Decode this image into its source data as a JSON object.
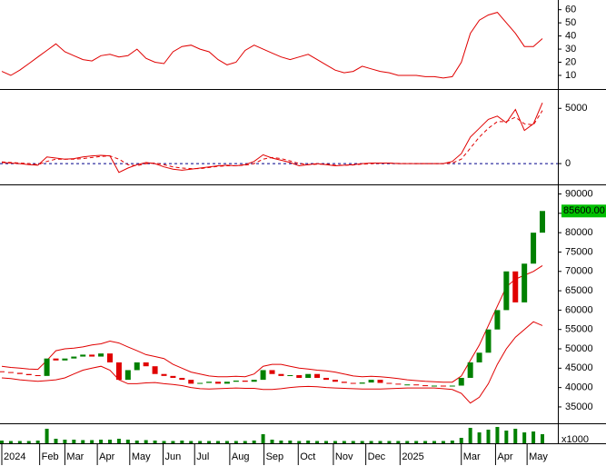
{
  "chart_data": [
    {
      "type": "line",
      "ylim": [
        1,
        66
      ],
      "yticks": [
        10,
        20,
        30,
        40,
        50,
        60
      ],
      "series": [
        {
          "color": "#e00000",
          "values": [
            13,
            10,
            14,
            19,
            24,
            29,
            34,
            28,
            25,
            22,
            21,
            25,
            26,
            24,
            25,
            30,
            23,
            20,
            19,
            28,
            32,
            33,
            30,
            28,
            22,
            18,
            20,
            29,
            33,
            30,
            27,
            24,
            22,
            24,
            26,
            22,
            18,
            14,
            12,
            13,
            17,
            15,
            13,
            12,
            10,
            10,
            10,
            9,
            9,
            8,
            9,
            20,
            42,
            52,
            56,
            58,
            50,
            42,
            32,
            32,
            38
          ]
        }
      ]
    },
    {
      "type": "line",
      "ylim": [
        -1800,
        6500
      ],
      "yticks": [
        0,
        5000
      ],
      "reference_line": 0,
      "series": [
        {
          "color": "#e00000",
          "dashed": false,
          "values": [
            100,
            50,
            0,
            -100,
            -150,
            600,
            500,
            400,
            450,
            600,
            700,
            750,
            700,
            -800,
            -400,
            -100,
            100,
            0,
            -300,
            -500,
            -600,
            -500,
            -400,
            -300,
            -200,
            -150,
            -200,
            -100,
            200,
            800,
            500,
            300,
            100,
            -200,
            -100,
            0,
            -100,
            -200,
            -150,
            -100,
            0,
            50,
            50,
            50,
            0,
            0,
            0,
            0,
            0,
            0,
            200,
            900,
            2400,
            3200,
            4000,
            4300,
            3700,
            4900,
            3000,
            3600,
            5500
          ]
        },
        {
          "color": "#e00000",
          "dashed": true,
          "values": [
            150,
            100,
            50,
            0,
            -100,
            200,
            400,
            400,
            400,
            450,
            550,
            650,
            700,
            400,
            -100,
            -200,
            0,
            50,
            -100,
            -300,
            -400,
            -450,
            -450,
            -350,
            -250,
            -200,
            -200,
            -150,
            0,
            400,
            550,
            450,
            250,
            0,
            -100,
            -50,
            -50,
            -150,
            -150,
            -120,
            -50,
            0,
            30,
            40,
            20,
            10,
            0,
            0,
            0,
            0,
            50,
            400,
            1400,
            2400,
            3200,
            3800,
            3800,
            4200,
            3600,
            3500,
            4800
          ]
        }
      ]
    },
    {
      "type": "candlestick",
      "ylim": [
        31000,
        92000
      ],
      "yticks": [
        35000,
        40000,
        45000,
        50000,
        55000,
        60000,
        65000,
        70000,
        75000,
        80000,
        85000,
        90000
      ],
      "up_color": "#008000",
      "down_color": "#e00000",
      "open": [
        44200,
        44000,
        43800,
        43500,
        43200,
        43000,
        47500,
        47000,
        47500,
        48000,
        48500,
        48000,
        48800,
        46500,
        42000,
        44500,
        46500,
        45500,
        43500,
        43000,
        42500,
        42000,
        41000,
        41200,
        41500,
        41000,
        41500,
        41800,
        41500,
        42000,
        44500,
        43500,
        43000,
        43200,
        42500,
        43500,
        42500,
        42000,
        41500,
        41200,
        41000,
        41300,
        42000,
        41200,
        41000,
        40800,
        40800,
        40600,
        40500,
        40500,
        40300,
        40500,
        42500,
        46500,
        49000,
        55000,
        60000,
        70000,
        62000,
        72000,
        80000
      ],
      "close": [
        44000,
        43800,
        43500,
        43200,
        43000,
        47500,
        47000,
        47500,
        48000,
        48500,
        48000,
        48800,
        46500,
        42000,
        44500,
        46500,
        45500,
        43500,
        43000,
        42500,
        42000,
        41000,
        41200,
        41500,
        41000,
        41500,
        41800,
        41500,
        42000,
        44500,
        43500,
        43000,
        43200,
        42500,
        43500,
        42500,
        42000,
        41500,
        41200,
        41000,
        41300,
        42000,
        41200,
        41000,
        40800,
        40800,
        40600,
        40500,
        40500,
        40300,
        40500,
        42500,
        46500,
        49000,
        55000,
        60000,
        70000,
        62000,
        72000,
        80000,
        85600
      ],
      "last_label": "85600.00",
      "bands": [
        {
          "color": "#e00000",
          "values": [
            45500,
            45200,
            45000,
            44800,
            44700,
            47000,
            49500,
            50000,
            50200,
            50500,
            51000,
            51300,
            52000,
            51500,
            50500,
            49500,
            48500,
            48000,
            47500,
            46000,
            45000,
            44000,
            43500,
            43000,
            42800,
            42800,
            42900,
            42800,
            43500,
            45500,
            46000,
            46000,
            45500,
            45000,
            44800,
            44500,
            44300,
            44000,
            43500,
            43000,
            42800,
            42900,
            42800,
            42600,
            42300,
            42000,
            41800,
            41600,
            41500,
            41400,
            41400,
            43000,
            47000,
            51000,
            56000,
            61000,
            66000,
            68000,
            69000,
            70000,
            71500
          ]
        },
        {
          "color": "#e00000",
          "values": [
            42500,
            42300,
            42000,
            41800,
            41600,
            41800,
            42000,
            42500,
            43500,
            44500,
            45000,
            45500,
            44500,
            42000,
            41000,
            41000,
            41200,
            41300,
            41000,
            40800,
            40500,
            40000,
            39700,
            39600,
            39700,
            39800,
            39900,
            39800,
            39800,
            39500,
            39500,
            39700,
            40000,
            40200,
            40300,
            40200,
            40000,
            39900,
            39800,
            39700,
            39600,
            39600,
            39600,
            39700,
            39800,
            39900,
            39900,
            39900,
            39900,
            39700,
            39500,
            38500,
            36000,
            37500,
            41000,
            46000,
            50000,
            53000,
            55000,
            57000,
            56000
          ]
        }
      ]
    },
    {
      "type": "bar",
      "ylim": [
        0,
        20000
      ],
      "color": "#008000",
      "ylabel": "x1000",
      "values": [
        3000,
        2500,
        2500,
        2500,
        3000,
        16000,
        5000,
        4000,
        4000,
        3500,
        3500,
        4000,
        4000,
        5000,
        4000,
        3000,
        3500,
        3000,
        2500,
        2500,
        3000,
        2500,
        2500,
        2500,
        2500,
        2500,
        2500,
        2500,
        3000,
        10000,
        4000,
        3000,
        3000,
        2500,
        3000,
        2500,
        2500,
        2500,
        2500,
        2500,
        2500,
        2500,
        2500,
        2500,
        2500,
        2500,
        2500,
        2500,
        2500,
        2500,
        3000,
        6000,
        17000,
        12000,
        15000,
        18000,
        14000,
        16000,
        12000,
        13000,
        10000
      ],
      "xticks": [
        {
          "value": 0,
          "label": "2024"
        },
        {
          "value": 4.2,
          "label": "Feb"
        },
        {
          "value": 7,
          "label": "Mar"
        },
        {
          "value": 10.6,
          "label": "Apr"
        },
        {
          "value": 14.2,
          "label": "May"
        },
        {
          "value": 17.9,
          "label": "Jun"
        },
        {
          "value": 21.4,
          "label": "Jul"
        },
        {
          "value": 25.3,
          "label": "Aug"
        },
        {
          "value": 29.1,
          "label": "Sep"
        },
        {
          "value": 32.9,
          "label": "Oct"
        },
        {
          "value": 36.8,
          "label": "Nov"
        },
        {
          "value": 40.4,
          "label": "Dec"
        },
        {
          "value": 44.2,
          "label": "2025"
        },
        {
          "value": 51,
          "label": "Mar"
        },
        {
          "value": 54.8,
          "label": "Apr"
        },
        {
          "value": 58.3,
          "label": "May"
        }
      ]
    }
  ]
}
